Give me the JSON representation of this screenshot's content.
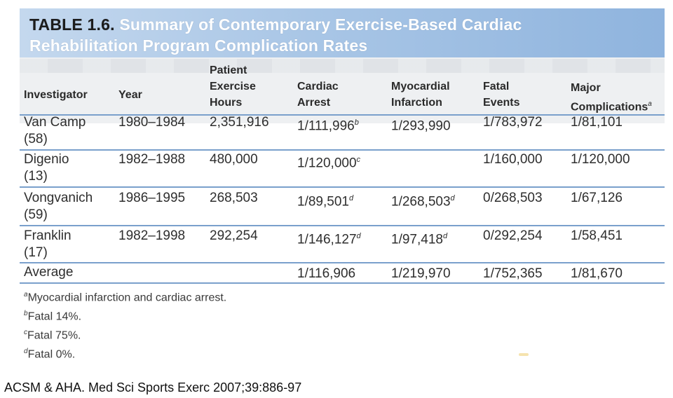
{
  "title": {
    "number": "TABLE 1.6.",
    "line1": "Summary of Contemporary Exercise-Based Cardiac",
    "line2": "Rehabilitation Program Complication Rates"
  },
  "columns": [
    {
      "lines": [
        "Investigator"
      ]
    },
    {
      "lines": [
        "Year"
      ]
    },
    {
      "lines": [
        "Patient",
        "Exercise",
        "Hours"
      ]
    },
    {
      "lines": [
        "Cardiac",
        "Arrest"
      ]
    },
    {
      "lines": [
        "Myocardial",
        "Infarction"
      ]
    },
    {
      "lines": [
        "Fatal",
        "Events"
      ]
    },
    {
      "lines": [
        "Major",
        "Complications"
      ],
      "sup": "a"
    }
  ],
  "rows": [
    {
      "investigator": [
        "Van Camp",
        "(58)"
      ],
      "year": "1980–1984",
      "hours": "2,351,916",
      "arrest": {
        "value": "1/111,996",
        "sup": "b"
      },
      "mi": {
        "value": "1/293,990",
        "sup": ""
      },
      "fatal": "1/783,972",
      "major": "1/81,101"
    },
    {
      "investigator": [
        "Digenio",
        "(13)"
      ],
      "year": "1982–1988",
      "hours": "480,000",
      "arrest": {
        "value": "1/120,000",
        "sup": "c"
      },
      "mi": {
        "value": "",
        "sup": ""
      },
      "fatal": "1/160,000",
      "major": "1/120,000"
    },
    {
      "investigator": [
        "Vongvanich",
        "(59)"
      ],
      "year": "1986–1995",
      "hours": "268,503",
      "arrest": {
        "value": "1/89,501",
        "sup": "d"
      },
      "mi": {
        "value": "1/268,503",
        "sup": "d"
      },
      "fatal": "0/268,503",
      "major": "1/67,126"
    },
    {
      "investigator": [
        "Franklin",
        "(17)"
      ],
      "year": "1982–1998",
      "hours": "292,254",
      "arrest": {
        "value": "1/146,127",
        "sup": "d"
      },
      "mi": {
        "value": "1/97,418",
        "sup": "d"
      },
      "fatal": "0/292,254",
      "major": "1/58,451"
    }
  ],
  "average": {
    "label": "Average",
    "arrest": "1/116,906",
    "mi": "1/219,970",
    "fatal": "1/752,365",
    "major": "1/81,670"
  },
  "footnotes": [
    {
      "mark": "a",
      "text": "Myocardial infarction and cardiac arrest."
    },
    {
      "mark": "b",
      "text": "Fatal 14%."
    },
    {
      "mark": "c",
      "text": "Fatal 75%."
    },
    {
      "mark": "d",
      "text": "Fatal 0%."
    }
  ],
  "citation": "ACSM & AHA. Med Sci Sports Exerc 2007;39:886-97",
  "colors": {
    "title_band": "#a9c6e6",
    "header_band": "#eef0f2",
    "rule": "#7aa0cc",
    "title_text": "#ffffff"
  }
}
